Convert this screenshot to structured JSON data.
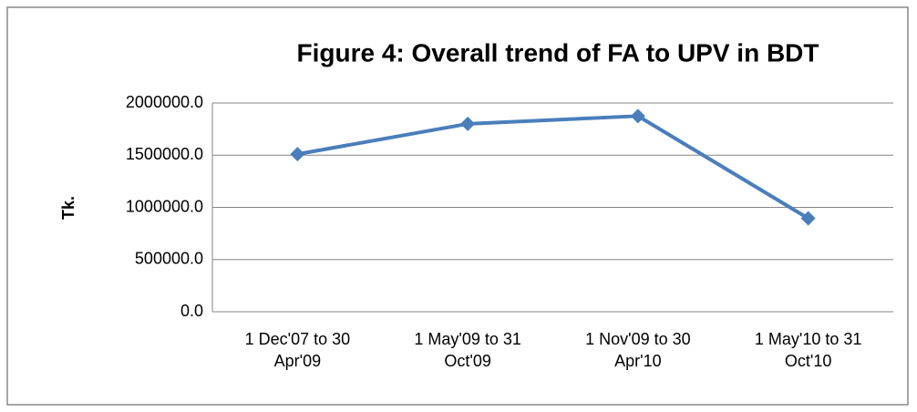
{
  "chart_data": {
    "type": "line",
    "title": "Figure 4: Overall trend of FA to UPV in BDT",
    "y_label": "Tk.",
    "categories": [
      "1 Dec'07 to 30 Apr'09",
      "1 May'09 to 31 Oct'09",
      "1 Nov'09 to 30 Apr'10",
      "1 May'10 to 31 Oct'10"
    ],
    "series": [
      {
        "name": "FA to UPV",
        "color": "#4a7ebb",
        "values": [
          1510000,
          1800000,
          1875000,
          895000
        ]
      }
    ],
    "ylim": [
      0,
      2000000
    ],
    "yticks": [
      {
        "value": 0,
        "label": "0.0"
      },
      {
        "value": 500000,
        "label": "500000.0"
      },
      {
        "value": 1000000,
        "label": "1000000.0"
      },
      {
        "value": 1500000,
        "label": "1500000.0"
      },
      {
        "value": 2000000,
        "label": "2000000.0"
      }
    ],
    "grid": true
  }
}
